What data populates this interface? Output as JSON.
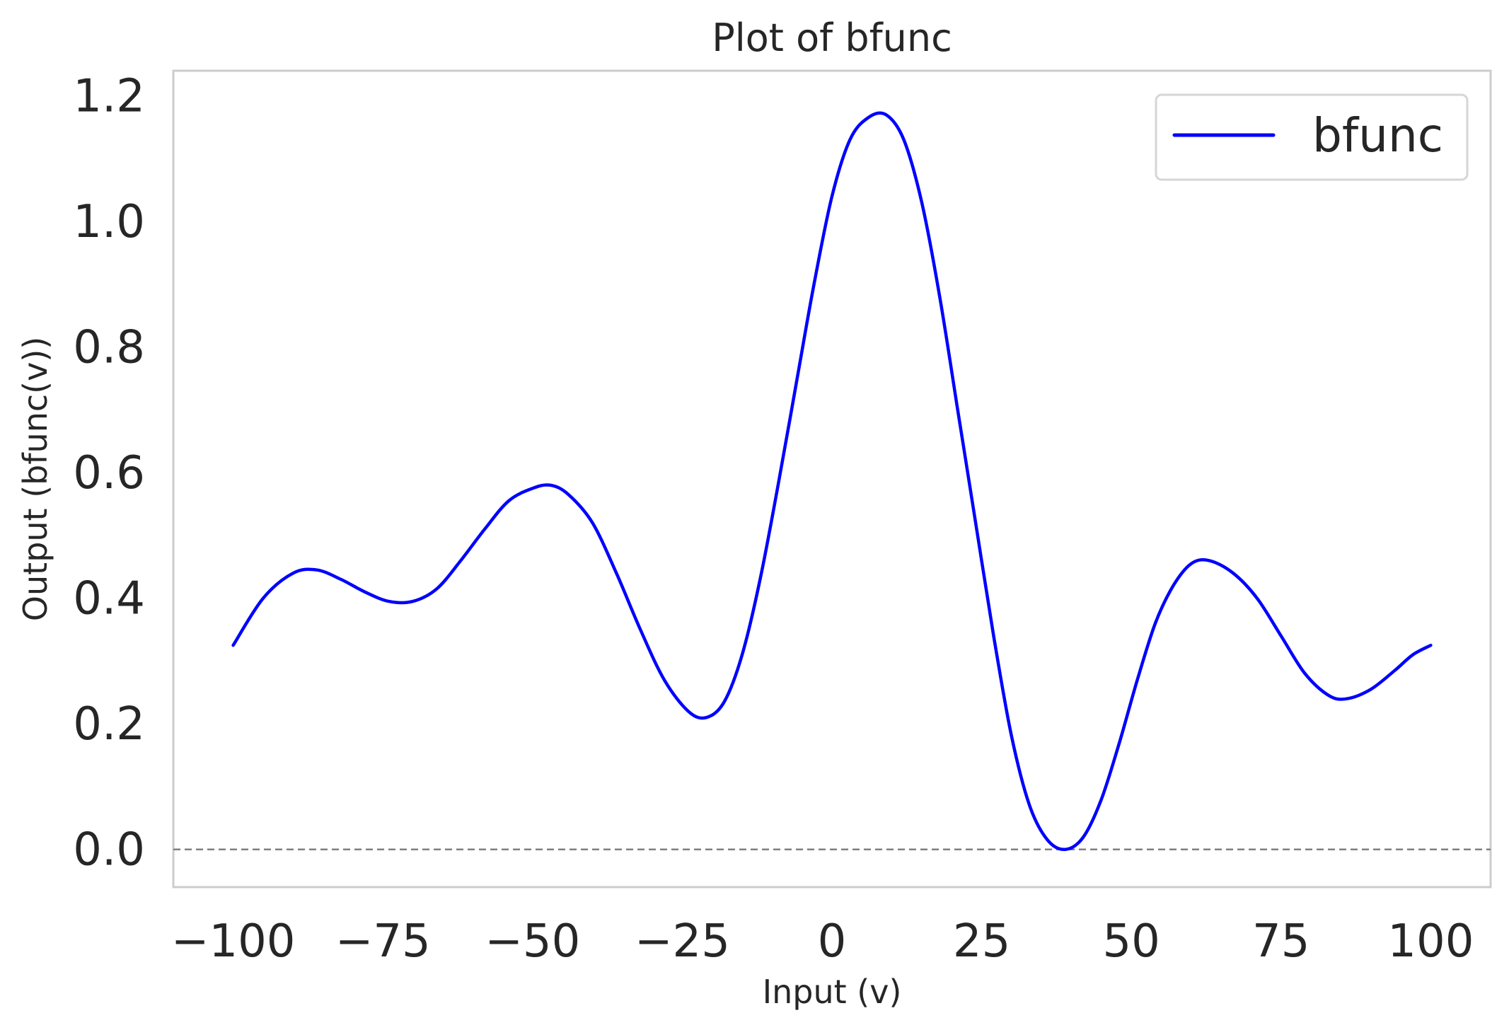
{
  "chart_data": {
    "type": "line",
    "title": "Plot of bfunc",
    "xlabel": "Input (v)",
    "ylabel": "Output (bfunc(v))",
    "xlim": [
      -110,
      110
    ],
    "ylim": [
      -0.06,
      1.24
    ],
    "xticks": [
      -100,
      -75,
      -50,
      -25,
      0,
      25,
      50,
      75,
      100
    ],
    "yticks": [
      0.0,
      0.2,
      0.4,
      0.6,
      0.8,
      1.0,
      1.2
    ],
    "xtick_labels": [
      "−100",
      "−75",
      "−50",
      "−25",
      "0",
      "25",
      "50",
      "75",
      "100"
    ],
    "ytick_labels": [
      "0.0",
      "0.2",
      "0.4",
      "0.6",
      "0.8",
      "1.0",
      "1.2"
    ],
    "grid": false,
    "legend": {
      "placement": "top-right",
      "entries": [
        "bfunc"
      ]
    },
    "reference_line": {
      "y": 0.0,
      "style": "dashed",
      "color": "#808080"
    },
    "series": [
      {
        "name": "bfunc",
        "color": "#0000ff",
        "x": [
          -100,
          -95,
          -90,
          -86,
          -82,
          -78,
          -74,
          -70,
          -66,
          -62,
          -58,
          -54,
          -50,
          -47,
          -44,
          -40,
          -36,
          -32,
          -28,
          -24,
          -21,
          -18,
          -15,
          -12,
          -9,
          -6,
          -3,
          0,
          3,
          6,
          9,
          12,
          15,
          18,
          21,
          24,
          27,
          30,
          33,
          36,
          39,
          42,
          45,
          48,
          51,
          54,
          57,
          60,
          63,
          67,
          71,
          75,
          79,
          83,
          86,
          90,
          94,
          97,
          100
        ],
        "y": [
          0.325,
          0.4,
          0.44,
          0.445,
          0.43,
          0.41,
          0.395,
          0.395,
          0.415,
          0.46,
          0.51,
          0.555,
          0.575,
          0.58,
          0.565,
          0.52,
          0.44,
          0.35,
          0.27,
          0.22,
          0.21,
          0.235,
          0.31,
          0.43,
          0.58,
          0.74,
          0.9,
          1.04,
          1.13,
          1.165,
          1.17,
          1.13,
          1.03,
          0.88,
          0.7,
          0.52,
          0.34,
          0.18,
          0.07,
          0.015,
          0.0,
          0.02,
          0.08,
          0.17,
          0.27,
          0.36,
          0.42,
          0.455,
          0.46,
          0.44,
          0.4,
          0.34,
          0.28,
          0.245,
          0.24,
          0.255,
          0.285,
          0.31,
          0.325
        ]
      }
    ]
  }
}
